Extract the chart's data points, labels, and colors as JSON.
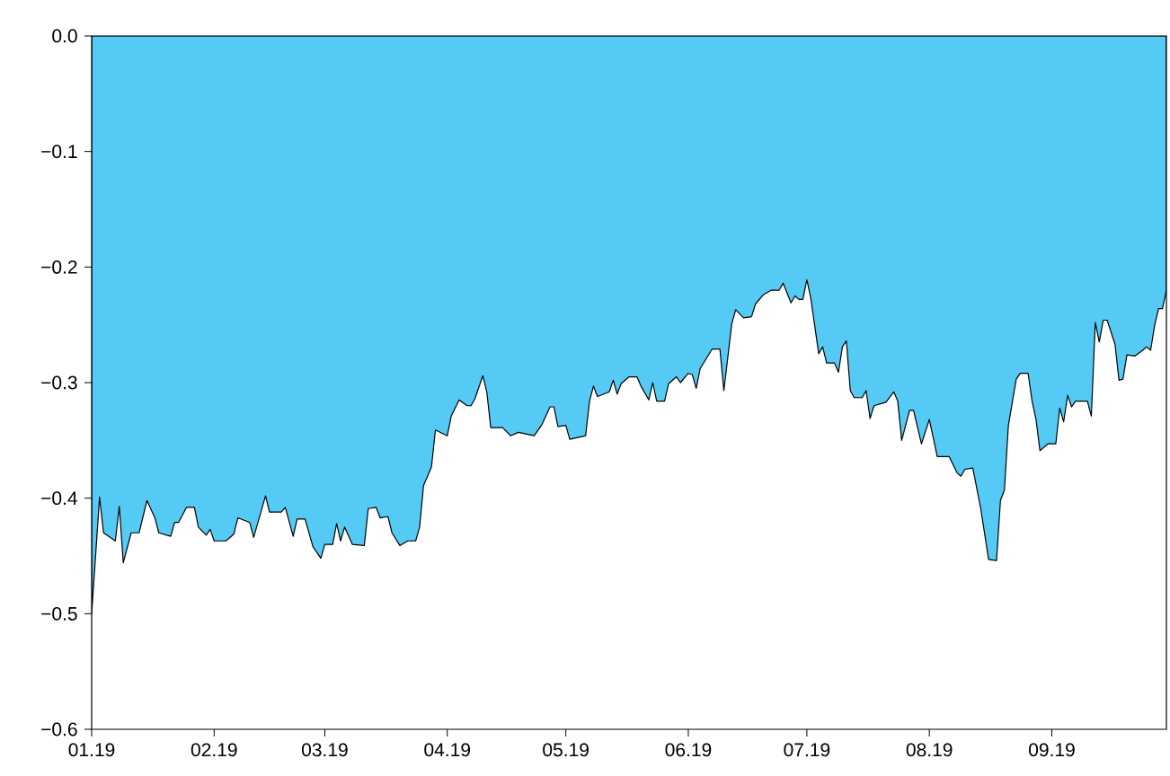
{
  "chart_data": {
    "type": "area",
    "x": [
      "2019-01-01",
      "2019-01-03",
      "2019-01-04",
      "2019-01-07",
      "2019-01-08",
      "2019-01-09",
      "2019-01-11",
      "2019-01-13",
      "2019-01-15",
      "2019-01-17",
      "2019-01-18",
      "2019-01-21",
      "2019-01-22",
      "2019-01-23",
      "2019-01-25",
      "2019-01-27",
      "2019-01-28",
      "2019-01-30",
      "2019-01-31",
      "2019-02-01",
      "2019-02-04",
      "2019-02-06",
      "2019-02-07",
      "2019-02-10",
      "2019-02-11",
      "2019-02-14",
      "2019-02-15",
      "2019-02-18",
      "2019-02-19",
      "2019-02-21",
      "2019-02-22",
      "2019-02-24",
      "2019-02-26",
      "2019-02-28",
      "2019-03-01",
      "2019-03-03",
      "2019-03-04",
      "2019-03-05",
      "2019-03-06",
      "2019-03-08",
      "2019-03-11",
      "2019-03-12",
      "2019-03-14",
      "2019-03-15",
      "2019-03-17",
      "2019-03-18",
      "2019-03-20",
      "2019-03-22",
      "2019-03-24",
      "2019-03-25",
      "2019-03-26",
      "2019-03-28",
      "2019-03-29",
      "2019-04-01",
      "2019-04-02",
      "2019-04-04",
      "2019-04-06",
      "2019-04-07",
      "2019-04-08",
      "2019-04-10",
      "2019-04-11",
      "2019-04-12",
      "2019-04-15",
      "2019-04-17",
      "2019-04-19",
      "2019-04-23",
      "2019-04-25",
      "2019-04-27",
      "2019-04-28",
      "2019-04-29",
      "2019-05-01",
      "2019-05-02",
      "2019-05-06",
      "2019-05-07",
      "2019-05-08",
      "2019-05-09",
      "2019-05-12",
      "2019-05-13",
      "2019-05-14",
      "2019-05-15",
      "2019-05-17",
      "2019-05-19",
      "2019-05-20",
      "2019-05-22",
      "2019-05-23",
      "2019-05-24",
      "2019-05-26",
      "2019-05-27",
      "2019-05-29",
      "2019-05-30",
      "2019-06-01",
      "2019-06-02",
      "2019-06-03",
      "2019-06-04",
      "2019-06-07",
      "2019-06-09",
      "2019-06-10",
      "2019-06-12",
      "2019-06-13",
      "2019-06-15",
      "2019-06-17",
      "2019-06-18",
      "2019-06-20",
      "2019-06-22",
      "2019-06-24",
      "2019-06-25",
      "2019-06-27",
      "2019-06-28",
      "2019-06-29",
      "2019-06-30",
      "2019-07-01",
      "2019-07-02",
      "2019-07-04",
      "2019-07-05",
      "2019-07-06",
      "2019-07-08",
      "2019-07-09",
      "2019-07-10",
      "2019-07-11",
      "2019-07-12",
      "2019-07-13",
      "2019-07-15",
      "2019-07-16",
      "2019-07-17",
      "2019-07-18",
      "2019-07-20",
      "2019-07-21",
      "2019-07-23",
      "2019-07-24",
      "2019-07-25",
      "2019-07-27",
      "2019-07-28",
      "2019-07-30",
      "2019-08-01",
      "2019-08-03",
      "2019-08-06",
      "2019-08-08",
      "2019-08-09",
      "2019-08-10",
      "2019-08-12",
      "2019-08-14",
      "2019-08-16",
      "2019-08-18",
      "2019-08-19",
      "2019-08-20",
      "2019-08-21",
      "2019-08-23",
      "2019-08-24",
      "2019-08-26",
      "2019-08-27",
      "2019-08-28",
      "2019-08-29",
      "2019-08-31",
      "2019-09-02",
      "2019-09-03",
      "2019-09-04",
      "2019-09-05",
      "2019-09-06",
      "2019-09-07",
      "2019-09-10",
      "2019-09-11",
      "2019-09-12",
      "2019-09-13",
      "2019-09-14",
      "2019-09-15",
      "2019-09-17",
      "2019-09-18",
      "2019-09-19",
      "2019-09-20",
      "2019-09-22",
      "2019-09-24",
      "2019-09-25",
      "2019-09-26",
      "2019-09-27",
      "2019-09-28",
      "2019-09-29",
      "2019-09-30"
    ],
    "values": [
      -0.5,
      -0.399,
      -0.43,
      -0.437,
      -0.407,
      -0.456,
      -0.43,
      -0.43,
      -0.402,
      -0.417,
      -0.43,
      -0.433,
      -0.421,
      -0.421,
      -0.408,
      -0.408,
      -0.425,
      -0.432,
      -0.427,
      -0.437,
      -0.437,
      -0.431,
      -0.417,
      -0.421,
      -0.434,
      -0.398,
      -0.412,
      -0.412,
      -0.408,
      -0.433,
      -0.418,
      -0.418,
      -0.442,
      -0.452,
      -0.44,
      -0.44,
      -0.422,
      -0.437,
      -0.425,
      -0.44,
      -0.441,
      -0.409,
      -0.408,
      -0.417,
      -0.416,
      -0.43,
      -0.441,
      -0.437,
      -0.437,
      -0.425,
      -0.389,
      -0.373,
      -0.341,
      -0.346,
      -0.329,
      -0.315,
      -0.32,
      -0.32,
      -0.314,
      -0.294,
      -0.308,
      -0.339,
      -0.339,
      -0.346,
      -0.343,
      -0.346,
      -0.336,
      -0.321,
      -0.321,
      -0.338,
      -0.337,
      -0.349,
      -0.346,
      -0.316,
      -0.303,
      -0.312,
      -0.308,
      -0.298,
      -0.31,
      -0.301,
      -0.295,
      -0.295,
      -0.303,
      -0.315,
      -0.3,
      -0.316,
      -0.316,
      -0.301,
      -0.295,
      -0.3,
      -0.292,
      -0.293,
      -0.305,
      -0.288,
      -0.271,
      -0.271,
      -0.307,
      -0.249,
      -0.237,
      -0.244,
      -0.243,
      -0.232,
      -0.224,
      -0.22,
      -0.22,
      -0.214,
      -0.231,
      -0.225,
      -0.228,
      -0.228,
      -0.211,
      -0.227,
      -0.275,
      -0.269,
      -0.283,
      -0.283,
      -0.291,
      -0.269,
      -0.264,
      -0.307,
      -0.313,
      -0.313,
      -0.307,
      -0.331,
      -0.32,
      -0.318,
      -0.317,
      -0.308,
      -0.316,
      -0.35,
      -0.324,
      -0.324,
      -0.353,
      -0.332,
      -0.364,
      -0.364,
      -0.378,
      -0.381,
      -0.375,
      -0.374,
      -0.409,
      -0.453,
      -0.454,
      -0.402,
      -0.393,
      -0.337,
      -0.297,
      -0.292,
      -0.292,
      -0.316,
      -0.332,
      -0.359,
      -0.353,
      -0.353,
      -0.322,
      -0.334,
      -0.311,
      -0.321,
      -0.316,
      -0.316,
      -0.329,
      -0.248,
      -0.265,
      -0.246,
      -0.246,
      -0.267,
      -0.298,
      -0.297,
      -0.276,
      -0.277,
      -0.272,
      -0.269,
      -0.272,
      -0.251,
      -0.236,
      -0.236,
      -0.22
    ],
    "color": "#55caf5",
    "xlim": [
      "2019-01-01",
      "2019-09-30"
    ],
    "xticks": [
      {
        "value": "2019-01-01",
        "label": "01.19"
      },
      {
        "value": "2019-02-01",
        "label": "02.19"
      },
      {
        "value": "2019-03-01",
        "label": "03.19"
      },
      {
        "value": "2019-04-01",
        "label": "04.19"
      },
      {
        "value": "2019-05-01",
        "label": "05.19"
      },
      {
        "value": "2019-06-01",
        "label": "06.19"
      },
      {
        "value": "2019-07-01",
        "label": "07.19"
      },
      {
        "value": "2019-08-01",
        "label": "08.19"
      },
      {
        "value": "2019-09-01",
        "label": "09.19"
      }
    ],
    "ylim": [
      -0.6,
      0
    ],
    "yticks": [
      {
        "value": -0.6,
        "label": "−0.6"
      },
      {
        "value": -0.5,
        "label": "−0.5"
      },
      {
        "value": -0.4,
        "label": "−0.4"
      },
      {
        "value": -0.3,
        "label": "−0.3"
      },
      {
        "value": -0.2,
        "label": "−0.2"
      },
      {
        "value": -0.1,
        "label": "−0.1"
      },
      {
        "value": 0,
        "label": "0.0"
      }
    ],
    "grid": false
  }
}
